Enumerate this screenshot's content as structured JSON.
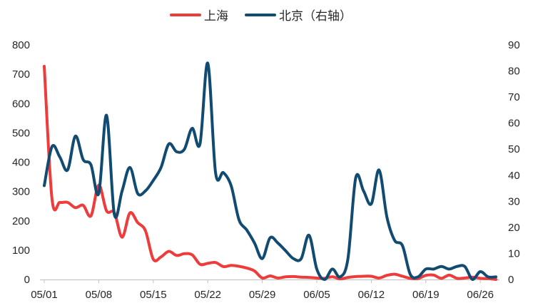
{
  "chart_data": {
    "type": "line",
    "title": "",
    "xlabel": "",
    "ylabel": "",
    "x": [
      "05/01",
      "05/02",
      "05/03",
      "05/04",
      "05/05",
      "05/06",
      "05/07",
      "05/08",
      "05/09",
      "05/10",
      "05/11",
      "05/12",
      "05/13",
      "05/14",
      "05/15",
      "05/16",
      "05/17",
      "05/18",
      "05/19",
      "05/20",
      "05/21",
      "05/22",
      "05/23",
      "05/24",
      "05/25",
      "05/26",
      "05/27",
      "05/28",
      "05/29",
      "05/30",
      "05/31",
      "06/01",
      "06/02",
      "06/03",
      "06/04",
      "06/05",
      "06/06",
      "06/07",
      "06/08",
      "06/09",
      "06/10",
      "06/11",
      "06/12",
      "06/13",
      "06/14",
      "06/15",
      "06/16",
      "06/17",
      "06/18",
      "06/19",
      "06/20",
      "06/21",
      "06/22",
      "06/23",
      "06/24",
      "06/25",
      "06/26",
      "06/27",
      "06/28"
    ],
    "x_ticks": [
      "05/01",
      "05/08",
      "05/15",
      "05/22",
      "05/29",
      "06/05",
      "06/12",
      "06/19",
      "06/26"
    ],
    "series": [
      {
        "name": "上海",
        "axis": "left",
        "color": "#EE3B3B",
        "values": [
          727,
          274,
          263,
          263,
          245,
          253,
          217,
          322,
          234,
          228,
          144,
          227,
          194,
          166,
          69,
          77,
          96,
          82,
          88,
          84,
          52,
          55,
          58,
          44,
          48,
          45,
          39,
          29,
          5,
          12,
          5,
          9,
          10,
          8,
          7,
          5,
          4,
          9,
          2,
          7,
          10,
          11,
          11,
          5,
          14,
          18,
          11,
          4,
          3,
          14,
          15,
          4,
          15,
          4,
          5,
          8,
          4,
          3,
          0
        ]
      },
      {
        "name": "北京（右轴）",
        "axis": "right",
        "color": "#114B72",
        "values": [
          36,
          51,
          47,
          42,
          55,
          46,
          44,
          33,
          63,
          25,
          34,
          43,
          33,
          34,
          38,
          43,
          52,
          49,
          50,
          58,
          52,
          83,
          41,
          41,
          36,
          23,
          19,
          14,
          8,
          16,
          14,
          11,
          8,
          8,
          17,
          4,
          0,
          4,
          1,
          8,
          39,
          34,
          29,
          42,
          24,
          15,
          13,
          2,
          1,
          4,
          4,
          5,
          4,
          5,
          5,
          0,
          3,
          1,
          1
        ]
      }
    ],
    "y_left": {
      "range": [
        0,
        800
      ],
      "ticks": [
        "0",
        "100",
        "200",
        "300",
        "400",
        "500",
        "600",
        "700",
        "800"
      ]
    },
    "y_right": {
      "range": [
        0,
        90
      ],
      "ticks": [
        "0",
        "10",
        "20",
        "30",
        "40",
        "50",
        "60",
        "70",
        "80",
        "90"
      ]
    },
    "legend": "top-center",
    "grid": false
  }
}
